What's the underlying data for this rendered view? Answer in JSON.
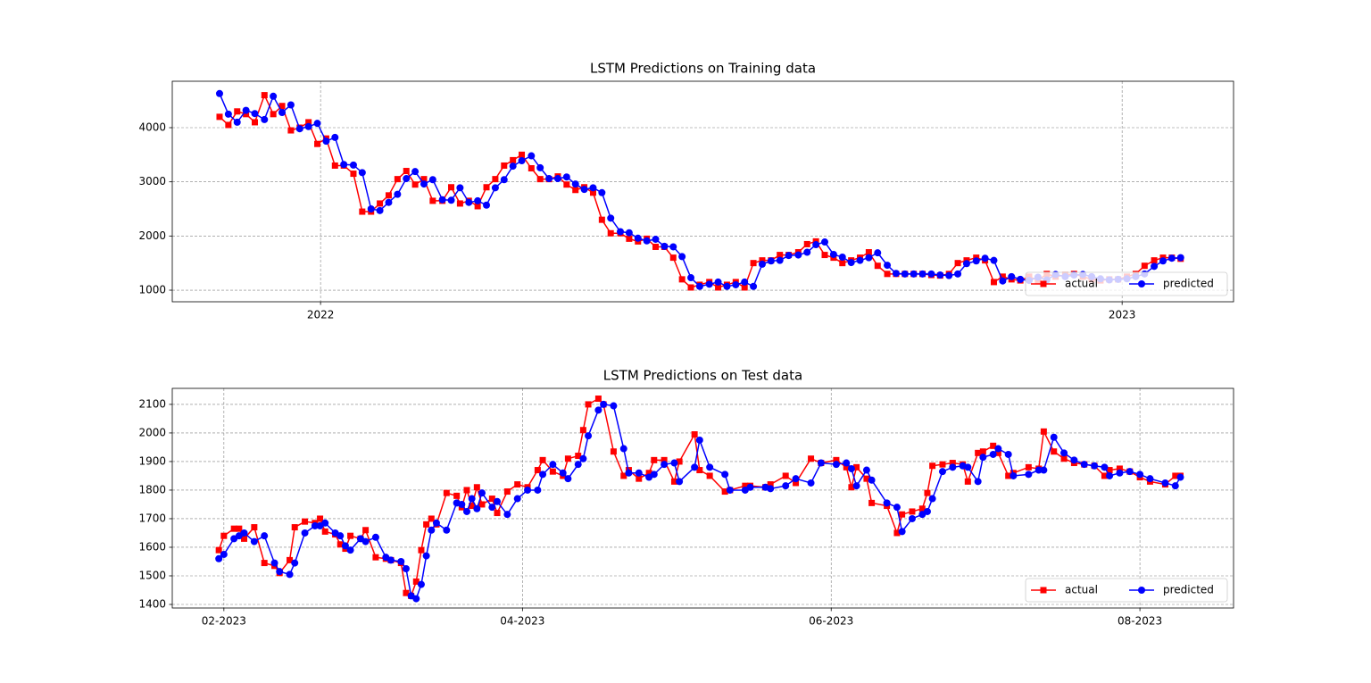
{
  "chart_data": [
    {
      "type": "line",
      "title": "LSTM Predictions on Training data",
      "x": [
        2021.874,
        2021.885,
        2021.896,
        2021.907,
        2021.918,
        2021.93,
        2021.941,
        2021.952,
        2021.963,
        2021.974,
        2021.985,
        2021.996,
        2022.007,
        2022.018,
        2022.029,
        2022.041,
        2022.052,
        2022.063,
        2022.074,
        2022.085,
        2022.096,
        2022.107,
        2022.118,
        2022.129,
        2022.14,
        2022.152,
        2022.163,
        2022.174,
        2022.185,
        2022.196,
        2022.207,
        2022.218,
        2022.229,
        2022.24,
        2022.251,
        2022.263,
        2022.274,
        2022.285,
        2022.296,
        2022.307,
        2022.318,
        2022.329,
        2022.34,
        2022.351,
        2022.362,
        2022.374,
        2022.385,
        2022.396,
        2022.407,
        2022.418,
        2022.429,
        2022.44,
        2022.451,
        2022.462,
        2022.473,
        2022.485,
        2022.496,
        2022.507,
        2022.518,
        2022.529,
        2022.54,
        2022.551,
        2022.562,
        2022.573,
        2022.584,
        2022.596,
        2022.607,
        2022.618,
        2022.629,
        2022.64,
        2022.651,
        2022.662,
        2022.673,
        2022.684,
        2022.695,
        2022.707,
        2022.718,
        2022.729,
        2022.74,
        2022.751,
        2022.762,
        2022.773,
        2022.784,
        2022.795,
        2022.806,
        2022.818,
        2022.829,
        2022.84,
        2022.851,
        2022.862,
        2022.873,
        2022.884,
        2022.895,
        2022.906,
        2022.917,
        2022.929,
        2022.94,
        2022.951,
        2022.962,
        2022.973,
        2022.984,
        2022.995,
        2023.006,
        2023.017,
        2023.028,
        2023.04,
        2023.051,
        2023.062,
        2023.073
      ],
      "series": [
        {
          "name": "actual",
          "color": "#ff0000",
          "marker": "square",
          "values": [
            4200,
            4050,
            4300,
            4250,
            4100,
            4600,
            4250,
            4400,
            3950,
            4000,
            4100,
            3700,
            3800,
            3300,
            3300,
            3150,
            2450,
            2450,
            2600,
            2750,
            3050,
            3200,
            2950,
            3050,
            2650,
            2650,
            2900,
            2600,
            2650,
            2550,
            2900,
            3050,
            3300,
            3400,
            3500,
            3250,
            3050,
            3050,
            3100,
            2950,
            2850,
            2900,
            2800,
            2300,
            2050,
            2050,
            1950,
            1900,
            1950,
            1800,
            1800,
            1600,
            1200,
            1050,
            1100,
            1150,
            1050,
            1100,
            1150,
            1050,
            1500,
            1550,
            1550,
            1650,
            1650,
            1700,
            1850,
            1900,
            1650,
            1600,
            1500,
            1550,
            1600,
            1700,
            1450,
            1300,
            1300,
            1300,
            1300,
            1300,
            1280,
            1270,
            1300,
            1500,
            1550,
            1600,
            1550,
            1150,
            1250,
            1200,
            1180,
            1250,
            1180,
            1300,
            1250,
            1280,
            1300,
            1250,
            1200,
            1180,
            1200,
            1200,
            1250,
            1300,
            1450,
            1550,
            1600,
            1600,
            1580
          ]
        },
        {
          "name": "predicted",
          "color": "#0000ff",
          "marker": "circle",
          "values": [
            4630,
            4250,
            4100,
            4320,
            4260,
            4150,
            4580,
            4280,
            4420,
            3980,
            4020,
            4080,
            3750,
            3820,
            3320,
            3310,
            3170,
            2500,
            2470,
            2620,
            2770,
            3060,
            3190,
            2960,
            3040,
            2670,
            2660,
            2890,
            2620,
            2650,
            2570,
            2890,
            3040,
            3290,
            3390,
            3480,
            3260,
            3060,
            3060,
            3090,
            2960,
            2860,
            2890,
            2800,
            2330,
            2080,
            2060,
            1960,
            1910,
            1940,
            1810,
            1800,
            1620,
            1230,
            1070,
            1110,
            1150,
            1070,
            1100,
            1150,
            1070,
            1480,
            1540,
            1550,
            1640,
            1650,
            1700,
            1840,
            1890,
            1660,
            1610,
            1510,
            1550,
            1600,
            1690,
            1460,
            1310,
            1300,
            1300,
            1300,
            1300,
            1280,
            1270,
            1300,
            1490,
            1540,
            1590,
            1550,
            1170,
            1250,
            1200,
            1180,
            1240,
            1190,
            1290,
            1250,
            1280,
            1290,
            1250,
            1210,
            1190,
            1200,
            1210,
            1250,
            1300,
            1440,
            1540,
            1590,
            1600
          ]
        }
      ],
      "xlim": [
        2021.815,
        2023.139
      ],
      "xticks": [
        2022,
        2023
      ],
      "ylim": [
        786,
        4857
      ],
      "yticks": [
        1000,
        2000,
        3000,
        4000
      ],
      "grid": true,
      "legend": "lower right"
    },
    {
      "type": "line",
      "title": "LSTM Predictions on Test data",
      "x": [
        31,
        32,
        34,
        35,
        36,
        38,
        40,
        42,
        43,
        45,
        46,
        48,
        50,
        51,
        52,
        54,
        55,
        56,
        57,
        59,
        60,
        62,
        64,
        65,
        67,
        68,
        69,
        70,
        71,
        72,
        73,
        74,
        76,
        78,
        79,
        80,
        81,
        82,
        83,
        85,
        86,
        88,
        90,
        92,
        94,
        95,
        97,
        99,
        100,
        102,
        103,
        104,
        106,
        107,
        109,
        111,
        112,
        114,
        116,
        117,
        119,
        121,
        122,
        125,
        126,
        128,
        131,
        132,
        135,
        136,
        139,
        140,
        143,
        145,
        148,
        150,
        153,
        155,
        156,
        157,
        159,
        160,
        163,
        165,
        166,
        168,
        170,
        171,
        172,
        174,
        176,
        178,
        179,
        181,
        182,
        184,
        185,
        187,
        188,
        191,
        193,
        194,
        196,
        198,
        200,
        202,
        204,
        206,
        207,
        209,
        211,
        213,
        215,
        218,
        220,
        221
      ],
      "series": [
        {
          "name": "actual",
          "color": "#ff0000",
          "marker": "square",
          "values": [
            1590,
            1640,
            1665,
            1665,
            1630,
            1670,
            1545,
            1535,
            1510,
            1555,
            1670,
            1690,
            1685,
            1700,
            1655,
            1645,
            1610,
            1595,
            1640,
            1630,
            1660,
            1565,
            1560,
            1555,
            1545,
            1440,
            1430,
            1480,
            1590,
            1680,
            1700,
            1680,
            1790,
            1780,
            1740,
            1800,
            1745,
            1810,
            1750,
            1770,
            1720,
            1795,
            1820,
            1810,
            1870,
            1905,
            1865,
            1850,
            1910,
            1920,
            2010,
            2100,
            2120,
            2100,
            1935,
            1850,
            1870,
            1840,
            1860,
            1905,
            1905,
            1830,
            1900,
            1995,
            1870,
            1850,
            1795,
            1800,
            1815,
            1815,
            1810,
            1820,
            1850,
            1825,
            1910,
            1895,
            1905,
            1880,
            1810,
            1880,
            1840,
            1755,
            1745,
            1650,
            1715,
            1725,
            1735,
            1790,
            1885,
            1890,
            1895,
            1890,
            1830,
            1930,
            1935,
            1955,
            1930,
            1850,
            1860,
            1880,
            1875,
            2005,
            1935,
            1910,
            1895,
            1890,
            1885,
            1850,
            1870,
            1875,
            1865,
            1845,
            1830,
            1820,
            1850,
            1850
          ]
        },
        {
          "name": "predicted",
          "color": "#0000ff",
          "marker": "circle",
          "values": [
            1560,
            1575,
            1630,
            1640,
            1650,
            1620,
            1640,
            1545,
            1515,
            1505,
            1545,
            1650,
            1675,
            1675,
            1685,
            1650,
            1640,
            1605,
            1590,
            1630,
            1620,
            1635,
            1565,
            1555,
            1550,
            1525,
            1430,
            1420,
            1470,
            1570,
            1660,
            1685,
            1660,
            1755,
            1750,
            1725,
            1770,
            1735,
            1790,
            1740,
            1760,
            1715,
            1770,
            1800,
            1800,
            1855,
            1890,
            1860,
            1840,
            1890,
            1910,
            1990,
            2080,
            2100,
            2095,
            1945,
            1860,
            1860,
            1845,
            1855,
            1890,
            1895,
            1830,
            1880,
            1975,
            1880,
            1855,
            1800,
            1800,
            1810,
            1810,
            1805,
            1815,
            1840,
            1825,
            1895,
            1890,
            1895,
            1875,
            1815,
            1870,
            1835,
            1755,
            1740,
            1655,
            1700,
            1715,
            1725,
            1770,
            1865,
            1880,
            1885,
            1880,
            1830,
            1915,
            1925,
            1945,
            1925,
            1850,
            1855,
            1870,
            1870,
            1985,
            1930,
            1905,
            1890,
            1885,
            1880,
            1850,
            1860,
            1865,
            1855,
            1840,
            1825,
            1815,
            1845
          ]
        }
      ],
      "xlim": [
        21.8,
        231.5
      ],
      "xticks": [
        {
          "value": 32,
          "label": "02-2023"
        },
        {
          "value": 91,
          "label": "04-2023"
        },
        {
          "value": 152,
          "label": "06-2023"
        },
        {
          "value": 213,
          "label": "08-2023"
        }
      ],
      "ylim": [
        1387.5,
        2156
      ],
      "yticks": [
        1400,
        1500,
        1600,
        1700,
        1800,
        1900,
        2000,
        2100
      ],
      "grid": true,
      "legend": "lower right"
    }
  ]
}
